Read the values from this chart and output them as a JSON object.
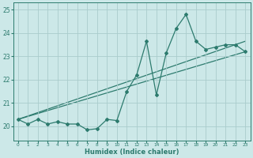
{
  "xlabel": "Humidex (Indice chaleur)",
  "background_color": "#cce8e8",
  "grid_color": "#aacccc",
  "line_color": "#2d7b6e",
  "xlim": [
    -0.5,
    23.5
  ],
  "ylim": [
    19.4,
    25.3
  ],
  "xticks": [
    0,
    1,
    2,
    3,
    4,
    5,
    6,
    7,
    8,
    9,
    10,
    11,
    12,
    13,
    14,
    15,
    16,
    17,
    18,
    19,
    20,
    21,
    22,
    23
  ],
  "yticks": [
    20,
    21,
    22,
    23,
    24,
    25
  ],
  "line1_x": [
    0,
    1,
    2,
    3,
    4,
    5,
    6,
    7,
    8,
    9,
    10,
    11,
    12,
    13,
    14,
    15,
    16,
    17,
    18,
    19,
    20,
    21,
    22,
    23
  ],
  "line1_y": [
    20.3,
    20.1,
    20.3,
    20.1,
    20.2,
    20.1,
    20.1,
    19.85,
    19.9,
    20.3,
    20.25,
    21.5,
    22.2,
    23.65,
    21.35,
    23.15,
    24.2,
    24.8,
    23.65,
    23.3,
    23.4,
    23.5,
    23.5,
    23.2
  ],
  "line2_x": [
    0,
    23
  ],
  "line2_y": [
    20.3,
    23.2
  ],
  "line3_x": [
    0,
    23
  ],
  "line3_y": [
    20.3,
    23.65
  ]
}
